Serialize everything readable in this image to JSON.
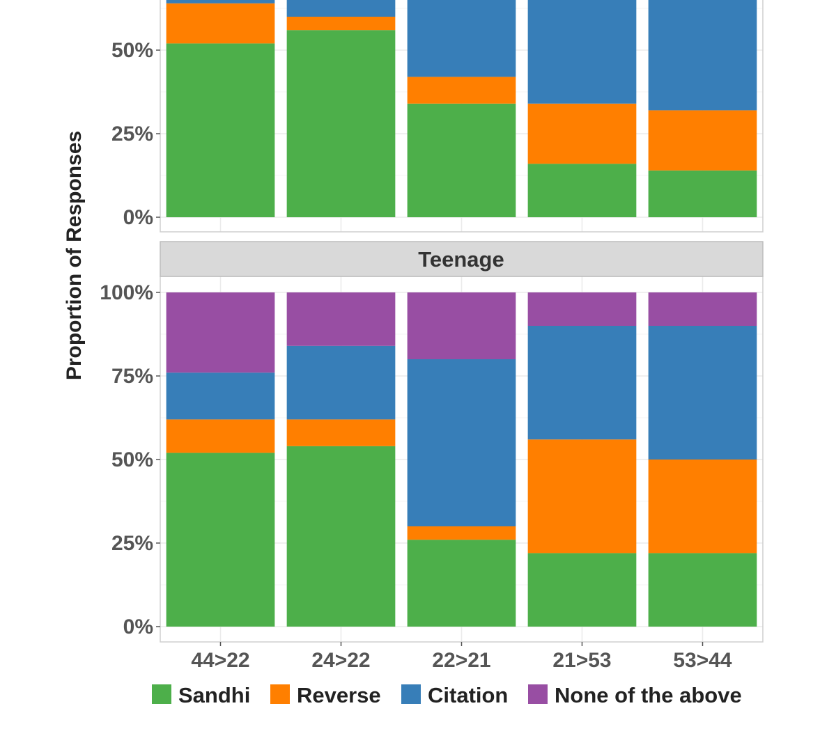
{
  "chart_data": {
    "type": "bar",
    "stacked": true,
    "facets": [
      {
        "label": "",
        "categories": [
          "44>22",
          "24>22",
          "22>21",
          "21>53",
          "53>44"
        ],
        "series": [
          {
            "name": "Sandhi",
            "values": [
              52,
              56,
              34,
              16,
              14
            ]
          },
          {
            "name": "Reverse",
            "values": [
              12,
              4,
              8,
              18,
              18
            ]
          },
          {
            "name": "Citation",
            "values": [
              36,
              40,
              58,
              66,
              68
            ]
          },
          {
            "name": "None of the above",
            "values": [
              0,
              0,
              0,
              0,
              0
            ]
          }
        ]
      },
      {
        "label": "Teenage",
        "categories": [
          "44>22",
          "24>22",
          "22>21",
          "21>53",
          "53>44"
        ],
        "series": [
          {
            "name": "Sandhi",
            "values": [
              52,
              54,
              26,
              22,
              22
            ]
          },
          {
            "name": "Reverse",
            "values": [
              10,
              8,
              4,
              34,
              28
            ]
          },
          {
            "name": "Citation",
            "values": [
              14,
              22,
              50,
              34,
              40
            ]
          },
          {
            "name": "None of the above",
            "values": [
              24,
              16,
              20,
              10,
              10
            ]
          }
        ]
      }
    ],
    "categories": [
      "44>22",
      "24>22",
      "22>21",
      "21>53",
      "53>44"
    ],
    "ylabel": "Proportion of Responses",
    "xlabel": "",
    "yticks": [
      "0%",
      "25%",
      "50%",
      "75%",
      "100%"
    ],
    "ylim": [
      0,
      100
    ],
    "legend": {
      "placement": "bottom",
      "entries": [
        "Sandhi",
        "Reverse",
        "Citation",
        "None of the above"
      ]
    },
    "colors": {
      "Sandhi": "#4daf4a",
      "Reverse": "#ff7f00",
      "Citation": "#377eb8",
      "None of the above": "#984ea3"
    },
    "grid": true
  }
}
